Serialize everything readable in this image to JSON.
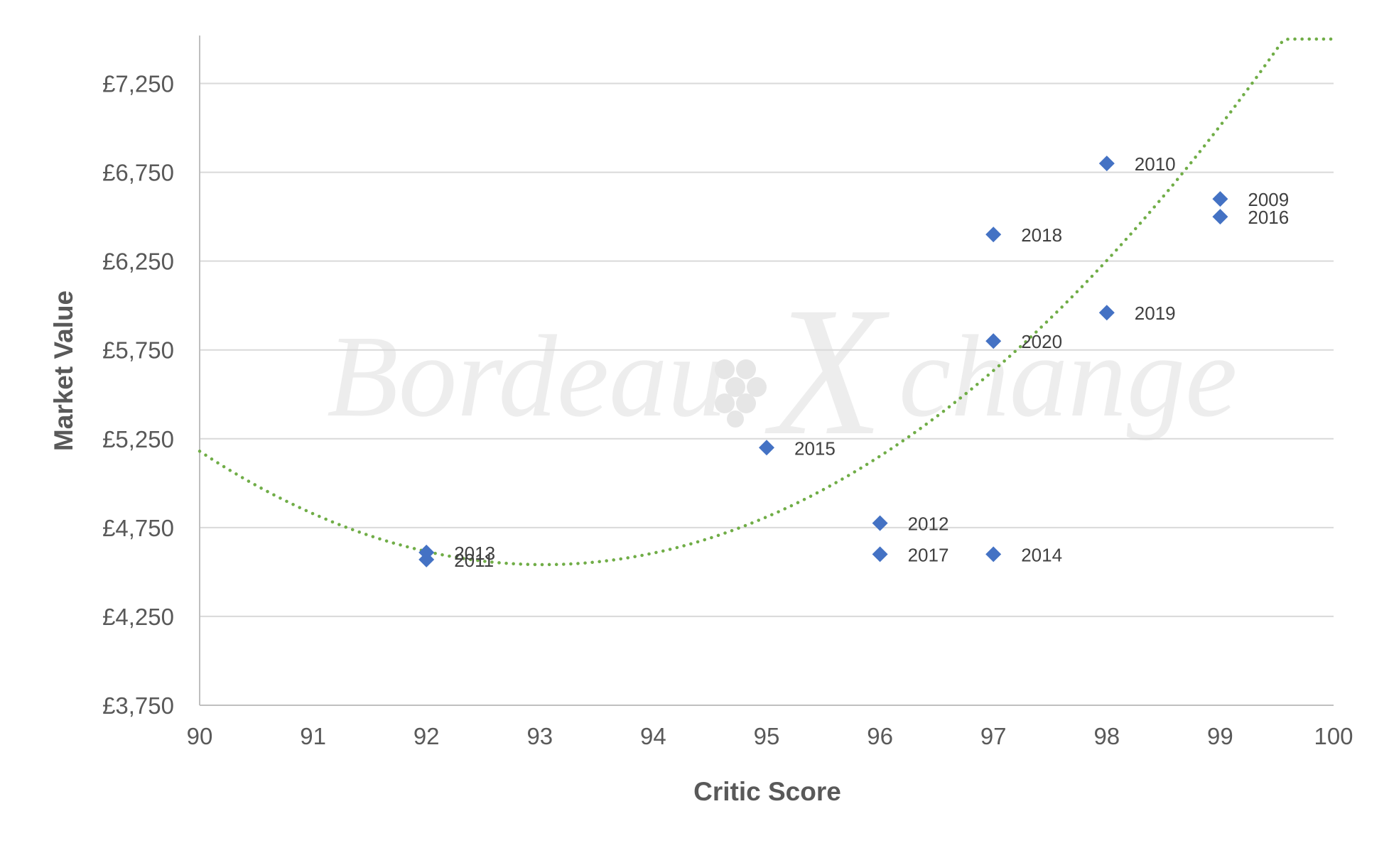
{
  "watermark": {
    "left": "Bordeau",
    "right": "change",
    "accent": "X"
  },
  "chart_data": {
    "type": "scatter",
    "title": "",
    "xlabel": "Critic Score",
    "ylabel": "Market Value",
    "xlim": [
      90,
      100
    ],
    "ylim": [
      3750,
      7500
    ],
    "x_ticks": [
      90,
      91,
      92,
      93,
      94,
      95,
      96,
      97,
      98,
      99,
      100
    ],
    "y_ticks": [
      3750,
      4250,
      4750,
      5250,
      5750,
      6250,
      6750,
      7250
    ],
    "y_tick_labels": [
      "£3,750",
      "£4,250",
      "£4,750",
      "£5,250",
      "£5,750",
      "£6,250",
      "£6,750",
      "£7,250"
    ],
    "grid": "horizontal",
    "marker": "diamond",
    "marker_color": "#4472C4",
    "points": [
      {
        "x": 92,
        "y": 4610,
        "label": "2013"
      },
      {
        "x": 92,
        "y": 4570,
        "label": "2011"
      },
      {
        "x": 95,
        "y": 5200,
        "label": "2015"
      },
      {
        "x": 96,
        "y": 4775,
        "label": "2012"
      },
      {
        "x": 96,
        "y": 4600,
        "label": "2017"
      },
      {
        "x": 97,
        "y": 4600,
        "label": "2014"
      },
      {
        "x": 97,
        "y": 5800,
        "label": "2020"
      },
      {
        "x": 97,
        "y": 6400,
        "label": "2018"
      },
      {
        "x": 98,
        "y": 5960,
        "label": "2019"
      },
      {
        "x": 98,
        "y": 6800,
        "label": "2010"
      },
      {
        "x": 99,
        "y": 6600,
        "label": "2009"
      },
      {
        "x": 99,
        "y": 6500,
        "label": "2016"
      }
    ],
    "trendline": {
      "type": "polynomial",
      "order": 2,
      "style": "dotted",
      "color": "#70AD47",
      "coefficients": [
        69.4,
        -12913,
        605210
      ]
    }
  }
}
